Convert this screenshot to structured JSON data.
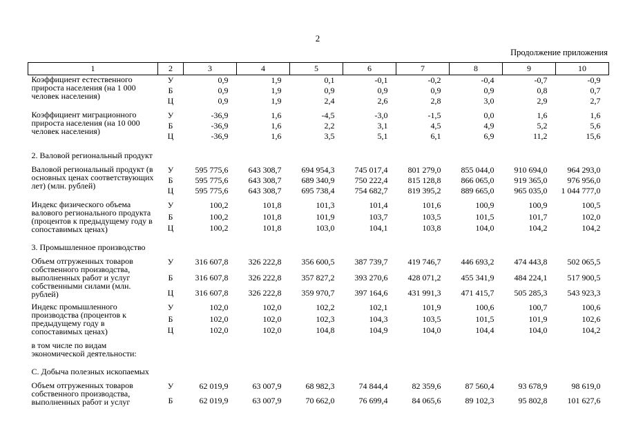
{
  "page": {
    "number": "2",
    "continuation_note": "Продолжение приложения"
  },
  "table": {
    "column_headers": [
      "1",
      "2",
      "3",
      "4",
      "5",
      "6",
      "7",
      "8",
      "9",
      "10"
    ],
    "rows": [
      {
        "type": "indicator",
        "label": "Коэффициент естественного прироста населения (на 1 000 человек населения)",
        "variants": [
          {
            "letter": "У",
            "values": [
              "0,9",
              "1,9",
              "0,1",
              "-0,1",
              "-0,2",
              "-0,4",
              "-0,7",
              "-0,9"
            ]
          },
          {
            "letter": "Б",
            "values": [
              "0,9",
              "1,9",
              "0,9",
              "0,9",
              "0,9",
              "0,9",
              "0,8",
              "0,7"
            ]
          },
          {
            "letter": "Ц",
            "values": [
              "0,9",
              "1,9",
              "2,4",
              "2,6",
              "2,8",
              "3,0",
              "2,9",
              "2,7"
            ]
          }
        ]
      },
      {
        "type": "indicator",
        "label": "Коэффициент миграционного прироста населения (на 10 000 человек населения)",
        "variants": [
          {
            "letter": "У",
            "values": [
              "-36,9",
              "1,6",
              "-4,5",
              "-3,0",
              "-1,5",
              "0,0",
              "1,6",
              "1,6"
            ]
          },
          {
            "letter": "Б",
            "values": [
              "-36,9",
              "1,6",
              "2,2",
              "3,1",
              "4,5",
              "4,9",
              "5,2",
              "5,6"
            ]
          },
          {
            "letter": "Ц",
            "values": [
              "-36,9",
              "1,6",
              "3,5",
              "5,1",
              "6,1",
              "6,9",
              "11,2",
              "15,6"
            ]
          }
        ]
      },
      {
        "type": "section",
        "text": "2. Валовой региональный продукт"
      },
      {
        "type": "indicator",
        "label": "Валовой региональный продукт (в основных ценах соответствующих лет) (млн. рублей)",
        "variants": [
          {
            "letter": "У",
            "values": [
              "595 775,6",
              "643 308,7",
              "694 954,3",
              "745 017,4",
              "801 279,0",
              "855 044,0",
              "910 694,0",
              "964 293,0"
            ]
          },
          {
            "letter": "Б",
            "values": [
              "595 775,6",
              "643 308,7",
              "689 340,9",
              "750 222,4",
              "815 128,8",
              "866 065,0",
              "919 365,0",
              "976 956,0"
            ]
          },
          {
            "letter": "Ц",
            "values": [
              "595 775,6",
              "643 308,7",
              "695 738,4",
              "754 682,7",
              "819 395,2",
              "889 665,0",
              "965 035,0",
              "1 044 777,0"
            ]
          }
        ]
      },
      {
        "type": "indicator",
        "label": "Индекс физического объема валового регионального продукта (процентов к предыдущему году в сопоставимых ценах)",
        "variants": [
          {
            "letter": "У",
            "values": [
              "100,2",
              "101,8",
              "101,3",
              "101,4",
              "101,6",
              "100,9",
              "100,9",
              "100,5"
            ]
          },
          {
            "letter": "Б",
            "values": [
              "100,2",
              "101,8",
              "101,9",
              "103,7",
              "103,5",
              "101,5",
              "101,7",
              "102,0"
            ]
          },
          {
            "letter": "Ц",
            "values": [
              "100,2",
              "101,8",
              "103,0",
              "104,1",
              "103,8",
              "104,0",
              "104,2",
              "104,2"
            ]
          }
        ]
      },
      {
        "type": "section",
        "text": "3. Промышленное производство"
      },
      {
        "type": "indicator",
        "label": "Объем отгруженных товаров собственного производства, выполненных работ и услуг собственными силами (млн. рублей)",
        "variants": [
          {
            "letter": "У",
            "values": [
              "316 607,8",
              "326 222,8",
              "356 600,5",
              "387 739,7",
              "419 746,7",
              "446 693,2",
              "474 443,8",
              "502 065,5"
            ]
          },
          {
            "letter": "Б",
            "values": [
              "316 607,8",
              "326 222,8",
              "357 827,2",
              "393 270,6",
              "428 071,2",
              "455 341,9",
              "484 224,1",
              "517 900,5"
            ]
          },
          {
            "letter": "Ц",
            "values": [
              "316 607,8",
              "326 222,8",
              "359 970,7",
              "397 164,6",
              "431 991,3",
              "471 415,7",
              "505 285,3",
              "543 923,3"
            ]
          }
        ]
      },
      {
        "type": "indicator",
        "label": "Индекс промышленного производства (процентов к предыдущему году в сопоставимых ценах)",
        "variants": [
          {
            "letter": "У",
            "values": [
              "102,0",
              "102,0",
              "102,2",
              "102,1",
              "101,9",
              "100,6",
              "100,7",
              "100,6"
            ]
          },
          {
            "letter": "Б",
            "values": [
              "102,0",
              "102,0",
              "102,3",
              "104,3",
              "103,5",
              "101,5",
              "101,9",
              "102,6"
            ]
          },
          {
            "letter": "Ц",
            "values": [
              "102,0",
              "102,0",
              "104,8",
              "104,9",
              "104,0",
              "104,4",
              "104,0",
              "104,2"
            ]
          }
        ]
      },
      {
        "type": "note",
        "text": "в том числе по видам экономической деятельности:"
      },
      {
        "type": "section",
        "text": "С. Добыча полезных ископаемых"
      },
      {
        "type": "indicator",
        "label": "Объем отгруженных товаров собственного производства, выполненных работ и услуг",
        "variants": [
          {
            "letter": "У",
            "values": [
              "62 019,9",
              "63 007,9",
              "68 982,3",
              "74 844,4",
              "82 359,6",
              "87 560,4",
              "93 678,9",
              "98 619,0"
            ]
          },
          {
            "letter": "Б",
            "values": [
              "62 019,9",
              "63 007,9",
              "70 662,0",
              "76 699,4",
              "84 065,6",
              "89 102,3",
              "95 802,8",
              "101 627,6"
            ]
          }
        ]
      }
    ]
  }
}
